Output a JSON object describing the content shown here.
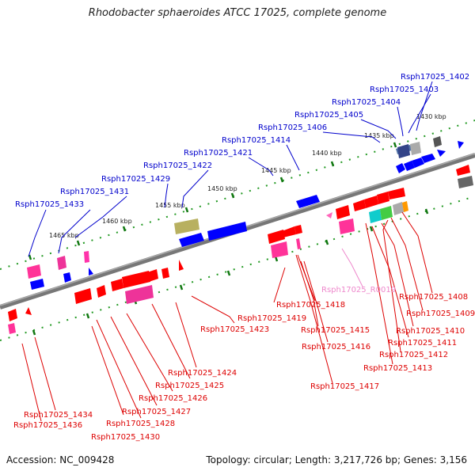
{
  "header": {
    "title": "Rhodobacter sphaeroides ATCC 17025, complete genome"
  },
  "footer": {
    "accession": "Accession: NC_009428",
    "stats": "Topology: circular; Length: 3,217,726 bp; Genes: 3,156"
  },
  "scale_labels": [
    "1430 kbp",
    "1435 kbp",
    "1440 kbp",
    "1445 kbp",
    "1450 kbp",
    "1455 kbp",
    "1460 kbp",
    "1465 kbp"
  ],
  "top_labels": [
    "Rsph17025_1402",
    "Rsph17025_1403",
    "Rsph17025_1404",
    "Rsph17025_1405",
    "Rsph17025_1406",
    "Rsph17025_1414",
    "Rsph17025_1421",
    "Rsph17025_1422",
    "Rsph17025_1429",
    "Rsph17025_1431",
    "Rsph17025_1433"
  ],
  "bottom_labels": [
    "Rsph17025_R0019",
    "Rsph17025_1408",
    "Rsph17025_1409",
    "Rsph17025_1410",
    "Rsph17025_1411",
    "Rsph17025_1412",
    "Rsph17025_1413",
    "Rsph17025_1418",
    "Rsph17025_1419",
    "Rsph17025_1415",
    "Rsph17025_1416",
    "Rsph17025_1423",
    "Rsph17025_1417",
    "Rsph17025_1424",
    "Rsph17025_1425",
    "Rsph17025_1426",
    "Rsph17025_1427",
    "Rsph17025_1428",
    "Rsph17025_1430",
    "Rsph17025_1434",
    "Rsph17025_1436"
  ]
}
